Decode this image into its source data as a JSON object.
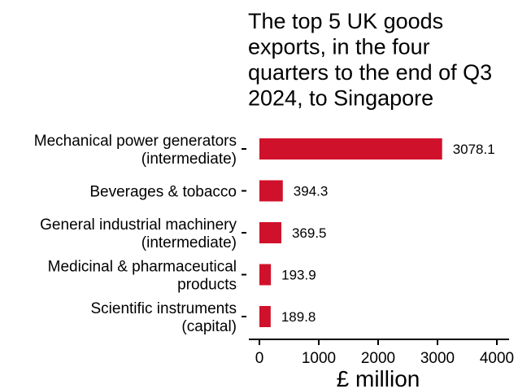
{
  "chart_data": {
    "type": "bar",
    "orientation": "horizontal",
    "title_lines": [
      "The top 5 UK goods",
      "exports, in the four",
      "quarters to the end of Q3",
      "2024, to Singapore"
    ],
    "categories": [
      [
        "Mechanical power generators",
        "(intermediate)"
      ],
      [
        "Beverages & tobacco"
      ],
      [
        "General industrial machinery",
        "(intermediate)"
      ],
      [
        "Medicinal & pharmaceutical",
        "products"
      ],
      [
        "Scientific instruments",
        "(capital)"
      ]
    ],
    "values": [
      3078.1,
      394.3,
      369.5,
      193.9,
      189.8
    ],
    "value_labels": [
      "3078.1",
      "394.3",
      "369.5",
      "193.9",
      "189.8"
    ],
    "xlabel": "£ million",
    "xlim": [
      0,
      4000
    ],
    "xticks": [
      0,
      1000,
      2000,
      3000,
      4000
    ],
    "xtick_labels": [
      "0",
      "1000",
      "2000",
      "3000",
      "4000"
    ],
    "grid": false,
    "legend": "none",
    "bar_color": "#d0112b"
  }
}
